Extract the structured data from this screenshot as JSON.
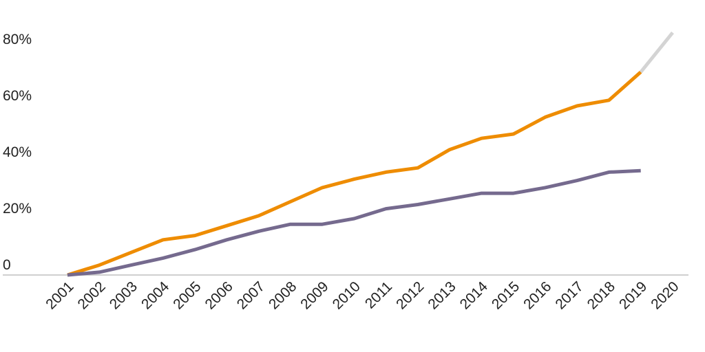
{
  "chart_data": {
    "type": "line",
    "title": "",
    "xlabel": "",
    "ylabel": "",
    "x": [
      "2001",
      "2002",
      "2003",
      "2004",
      "2005",
      "2006",
      "2007",
      "2008",
      "2009",
      "2010",
      "2011",
      "2012",
      "2013",
      "2014",
      "2015",
      "2016",
      "2017",
      "2018",
      "2019",
      "2020"
    ],
    "y_ticks": [
      "0",
      "20%",
      "40%",
      "60%",
      "80%"
    ],
    "y_tick_values": [
      0,
      20,
      40,
      60,
      80
    ],
    "ylim": [
      0,
      90
    ],
    "grid": false,
    "series": [
      {
        "color": "#ee8c00",
        "values": [
          0,
          3.5,
          8,
          12.5,
          14,
          17.5,
          21,
          26,
          31,
          34,
          36.5,
          38,
          44.5,
          48.5,
          50,
          56,
          60,
          62,
          72,
          null
        ]
      },
      {
        "color": "#d4d4d4",
        "values": [
          null,
          null,
          null,
          null,
          null,
          null,
          null,
          null,
          null,
          null,
          null,
          null,
          null,
          null,
          null,
          null,
          null,
          null,
          72,
          86
        ]
      },
      {
        "color": "#756a8e",
        "values": [
          0,
          1,
          3.5,
          6,
          9,
          12.5,
          15.5,
          18,
          18,
          20,
          23.5,
          25,
          27,
          29,
          29,
          31,
          33.5,
          36.5,
          37,
          null
        ]
      }
    ]
  }
}
